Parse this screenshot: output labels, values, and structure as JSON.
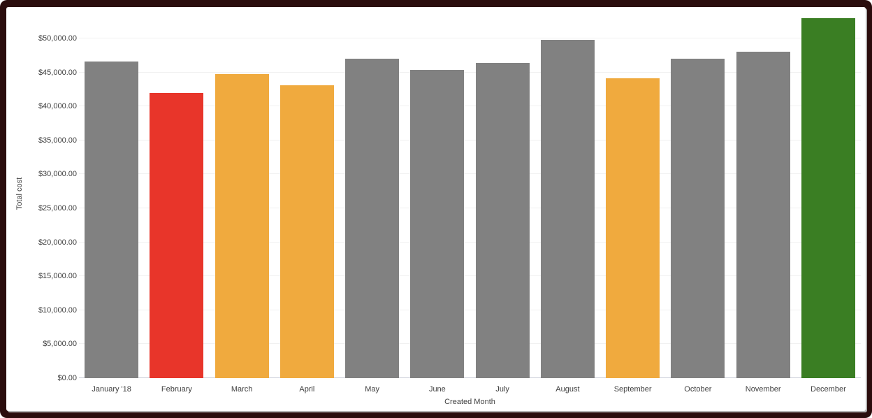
{
  "chart_data": {
    "type": "bar",
    "title": "",
    "xlabel": "Created Month",
    "ylabel": "Total cost",
    "categories": [
      "January '18",
      "February",
      "March",
      "April",
      "May",
      "June",
      "July",
      "August",
      "September",
      "October",
      "November",
      "December"
    ],
    "values": [
      46600,
      42000,
      44750,
      43150,
      47000,
      45350,
      46350,
      49800,
      44150,
      47050,
      48050,
      53000
    ],
    "bar_colors": [
      "#818181",
      "#e8352a",
      "#f0aa3e",
      "#f0aa3e",
      "#818181",
      "#818181",
      "#818181",
      "#818181",
      "#f0aa3e",
      "#818181",
      "#818181",
      "#3a7e23"
    ],
    "yticks": [
      0,
      5000,
      10000,
      15000,
      20000,
      25000,
      30000,
      35000,
      40000,
      45000,
      50000
    ],
    "ytick_labels": [
      "$0.00",
      "$5,000.00",
      "$10,000.00",
      "$15,000.00",
      "$20,000.00",
      "$25,000.00",
      "$30,000.00",
      "$35,000.00",
      "$40,000.00",
      "$45,000.00",
      "$50,000.00"
    ],
    "ylim": [
      0,
      54300
    ],
    "grid": true,
    "legend": false,
    "colors_meaning": {
      "gray": "#818181",
      "red": "#e8352a",
      "orange": "#f0aa3e",
      "green": "#3a7e23"
    }
  },
  "frame": {
    "border_color": "#2b0d0d",
    "panel_background": "#ffffff",
    "gridline_color": "#f1f1f1",
    "baseline_color": "#c9ccd6",
    "text_color": "#3e3e3e"
  }
}
